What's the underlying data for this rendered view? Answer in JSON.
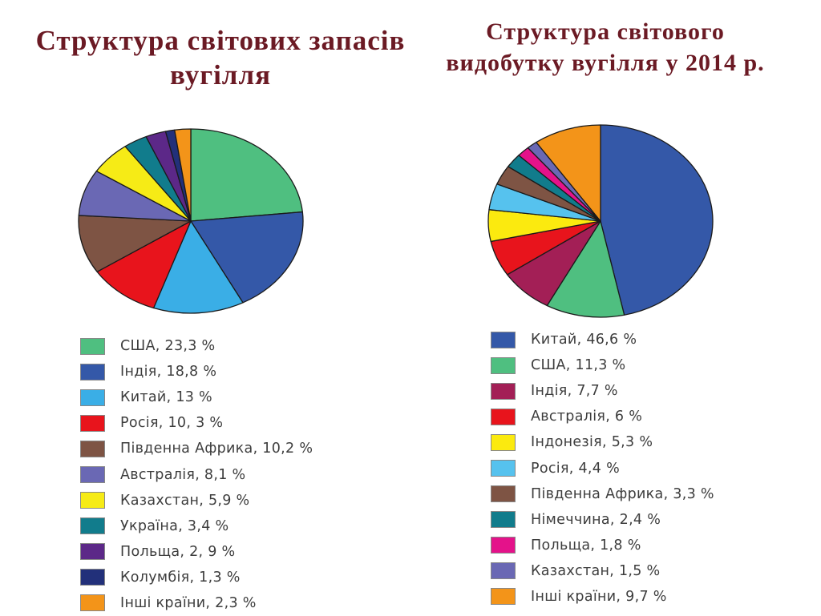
{
  "chart_data": [
    {
      "type": "pie",
      "title": "Структура світових запасів вугілля",
      "slices": [
        {
          "name": "США",
          "label": "США, 23,3 %",
          "value": 23.3,
          "color": "#4fbf80"
        },
        {
          "name": "Індія",
          "label": "Індія, 18,8 %",
          "value": 18.8,
          "color": "#3458a8"
        },
        {
          "name": "Китай",
          "label": "Китай, 13 %",
          "value": 13,
          "color": "#3aaee6"
        },
        {
          "name": "Росія",
          "label": "Росія, 10, 3 %",
          "value": 10.3,
          "color": "#e8141c"
        },
        {
          "name": "Південна Африка",
          "label": "Південна Африка, 10,2 %",
          "value": 10.2,
          "color": "#7e5444"
        },
        {
          "name": "Австралія",
          "label": "Австралія, 8,1 %",
          "value": 8.1,
          "color": "#6a68b4"
        },
        {
          "name": "Казахстан",
          "label": "Казахстан, 5,9 %",
          "value": 5.9,
          "color": "#f6eb16"
        },
        {
          "name": "Україна",
          "label": "Україна, 3,4 %",
          "value": 3.4,
          "color": "#117c8c"
        },
        {
          "name": "Польща",
          "label": "Польща, 2, 9 %",
          "value": 2.9,
          "color": "#5c2888"
        },
        {
          "name": "Колумбія",
          "label": "Колумбія, 1,3 %",
          "value": 1.3,
          "color": "#22307a"
        },
        {
          "name": "Інші країни",
          "label": "Інші країни, 2,3 %",
          "value": 2.3,
          "color": "#f39419"
        }
      ]
    },
    {
      "type": "pie",
      "title": "Структура світового видобутку вугілля у 2014 р.",
      "slices": [
        {
          "name": "Китай",
          "label": "Китай, 46,6 %",
          "value": 46.6,
          "color": "#3458a8"
        },
        {
          "name": "США",
          "label": "США, 11,3 %",
          "value": 11.3,
          "color": "#4fbf80"
        },
        {
          "name": "Індія",
          "label": "Індія, 7,7 %",
          "value": 7.7,
          "color": "#a31f56"
        },
        {
          "name": "Австралія",
          "label": "Австралія, 6 %",
          "value": 6,
          "color": "#e8141c"
        },
        {
          "name": "Індонезія",
          "label": "Індонезія, 5,3 %",
          "value": 5.3,
          "color": "#fbea0f"
        },
        {
          "name": "Росія",
          "label": "Росія, 4,4 %",
          "value": 4.4,
          "color": "#56c2ee"
        },
        {
          "name": "Південна Африка",
          "label": "Південна Африка, 3,3 %",
          "value": 3.3,
          "color": "#7e5444"
        },
        {
          "name": "Німеччина",
          "label": "Німеччина, 2,4 %",
          "value": 2.4,
          "color": "#117c8c"
        },
        {
          "name": "Польща",
          "label": "Польща, 1,8 %",
          "value": 1.8,
          "color": "#e4128a"
        },
        {
          "name": "Казахстан",
          "label": "Казахстан, 1,5 %",
          "value": 1.5,
          "color": "#6a68b4"
        },
        {
          "name": "Інші країни",
          "label": "Інші країни, 9,7 %",
          "value": 9.7,
          "color": "#f39419"
        }
      ]
    }
  ]
}
